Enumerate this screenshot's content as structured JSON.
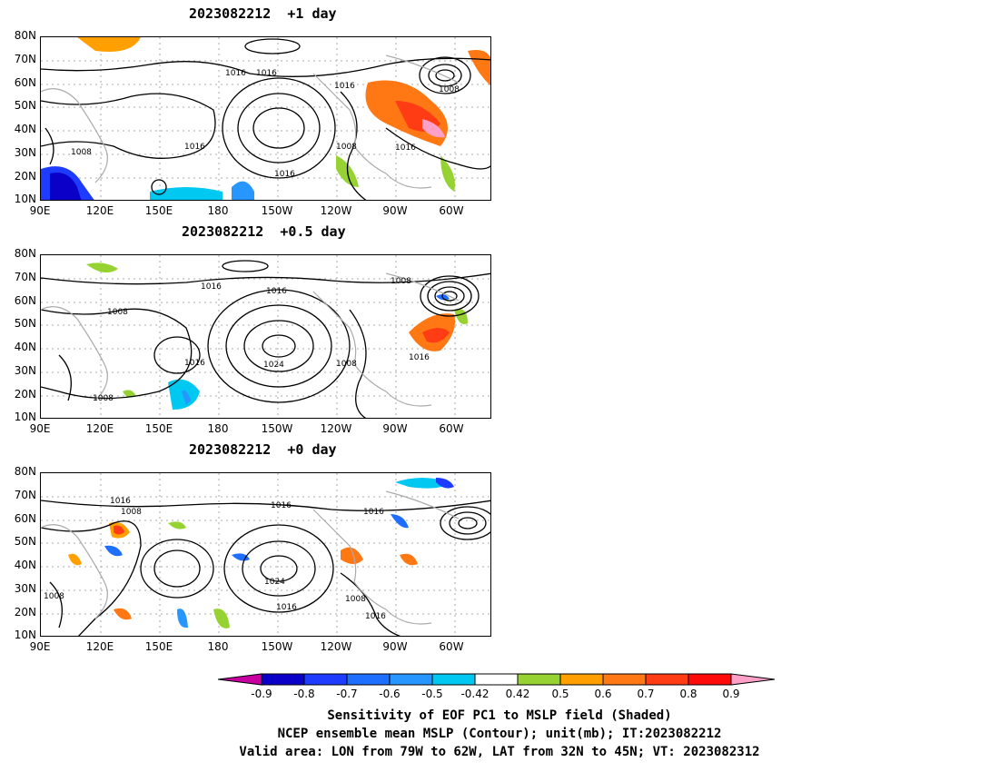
{
  "panels": [
    {
      "title": "2023082212  +1 day",
      "contour_labels": [
        "1016",
        "1016",
        "1016",
        "1008",
        "1016",
        "1016",
        "1008",
        "1016",
        "1008",
        "1008"
      ],
      "lat_labels": [
        "80N",
        "70N",
        "60N",
        "50N",
        "40N",
        "30N",
        "20N",
        "10N"
      ],
      "lon_labels": [
        "90E",
        "120E",
        "150E",
        "180",
        "150W",
        "120W",
        "90W",
        "60W"
      ]
    },
    {
      "title": "2023082212  +0.5 day",
      "contour_labels": [
        "1016",
        "1016",
        "1008",
        "1008",
        "1016",
        "1024",
        "1008",
        "1016",
        "1008"
      ],
      "lat_labels": [
        "80N",
        "70N",
        "60N",
        "50N",
        "40N",
        "30N",
        "20N",
        "10N"
      ],
      "lon_labels": [
        "90E",
        "120E",
        "150E",
        "180",
        "150W",
        "120W",
        "90W",
        "60W"
      ]
    },
    {
      "title": "2023082212  +0 day",
      "contour_labels": [
        "1016",
        "1008",
        "1016",
        "1016",
        "1024",
        "1016",
        "1008",
        "1008",
        "1016"
      ],
      "lat_labels": [
        "80N",
        "70N",
        "60N",
        "50N",
        "40N",
        "30N",
        "20N",
        "10N"
      ],
      "lon_labels": [
        "90E",
        "120E",
        "150E",
        "180",
        "150W",
        "120W",
        "90W",
        "60W"
      ]
    }
  ],
  "colorbar": {
    "labels": [
      "-0.9",
      "-0.8",
      "-0.7",
      "-0.6",
      "-0.5",
      "-0.42",
      "0.42",
      "0.5",
      "0.6",
      "0.7",
      "0.8",
      "0.9"
    ],
    "colors": [
      "#0a00c8",
      "#1e3cff",
      "#1e6eff",
      "#2896ff",
      "#00c8f0",
      "#ffffff",
      "#96d232",
      "#ffa000",
      "#ff7814",
      "#ff3c14",
      "#ff0a0a"
    ],
    "low_color": "#c800a0",
    "high_color": "#ffa0c8"
  },
  "caption": {
    "line1": "Sensitivity of EOF PC1 to MSLP field (Shaded)",
    "line2": "NCEP ensemble mean MSLP (Contour); unit(mb); IT:2023082212",
    "line3": "Valid area: LON from 79W to 62W, LAT from 32N to 45N; VT: 2023082312"
  }
}
